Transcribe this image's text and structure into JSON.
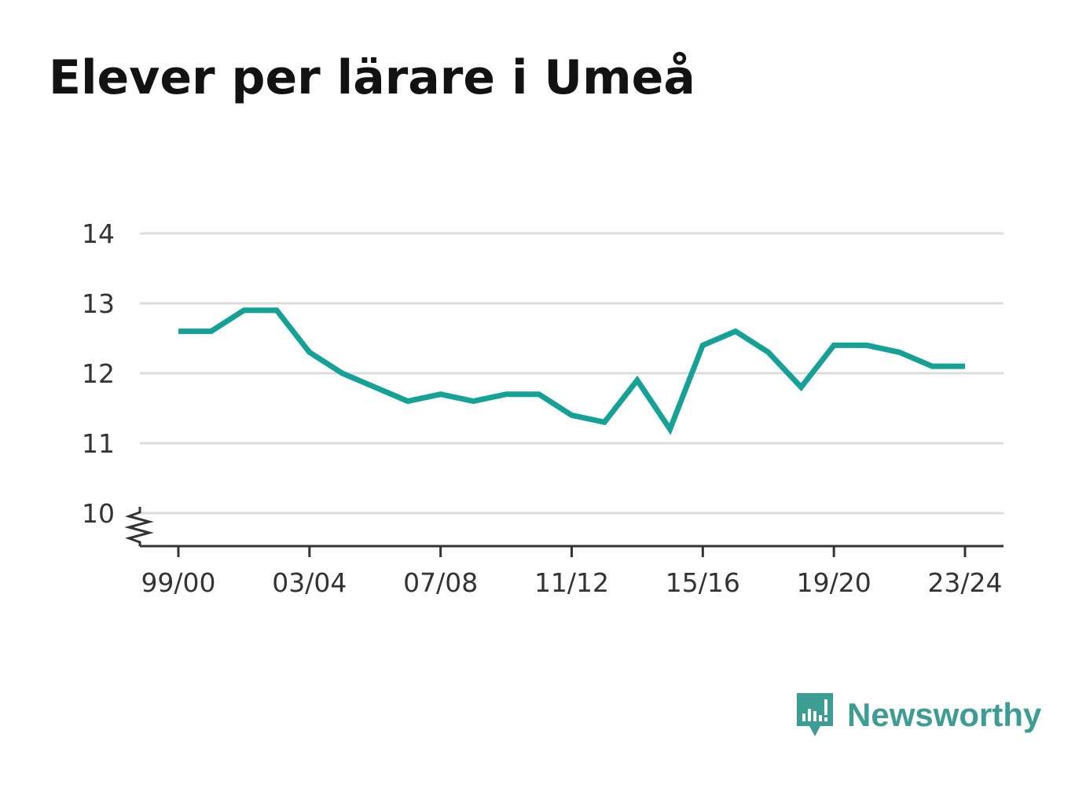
{
  "title": "Elever per lärare i Umeå",
  "brand": {
    "name": "Newsworthy",
    "icon": "newsworthy-logo-icon",
    "color": "#3d9c93"
  },
  "colors": {
    "line": "#16a196",
    "grid": "#dddddd",
    "axis": "#333333"
  },
  "chart_data": {
    "type": "line",
    "title": "Elever per lärare i Umeå",
    "xlabel": "",
    "ylabel": "",
    "x": [
      "99/00",
      "00/01",
      "01/02",
      "02/03",
      "03/04",
      "04/05",
      "05/06",
      "06/07",
      "07/08",
      "08/09",
      "09/10",
      "10/11",
      "11/12",
      "12/13",
      "13/14",
      "14/15",
      "15/16",
      "16/17",
      "17/18",
      "18/19",
      "19/20",
      "20/21",
      "21/22",
      "22/23",
      "23/24"
    ],
    "x_tick_labels": [
      "99/00",
      "03/04",
      "07/08",
      "11/12",
      "15/16",
      "19/20",
      "23/24"
    ],
    "series": [
      {
        "values": [
          12.6,
          12.6,
          12.9,
          12.9,
          12.3,
          12.0,
          11.8,
          11.6,
          11.7,
          11.6,
          11.7,
          11.7,
          11.4,
          11.3,
          11.9,
          11.2,
          12.4,
          12.6,
          12.3,
          11.8,
          12.4,
          12.4,
          12.3,
          12.1,
          12.1
        ]
      }
    ],
    "y_ticks": [
      10,
      11,
      12,
      13,
      14
    ],
    "ylim": [
      10,
      14
    ],
    "y_axis_break": true,
    "grid": true,
    "legend": "none"
  }
}
